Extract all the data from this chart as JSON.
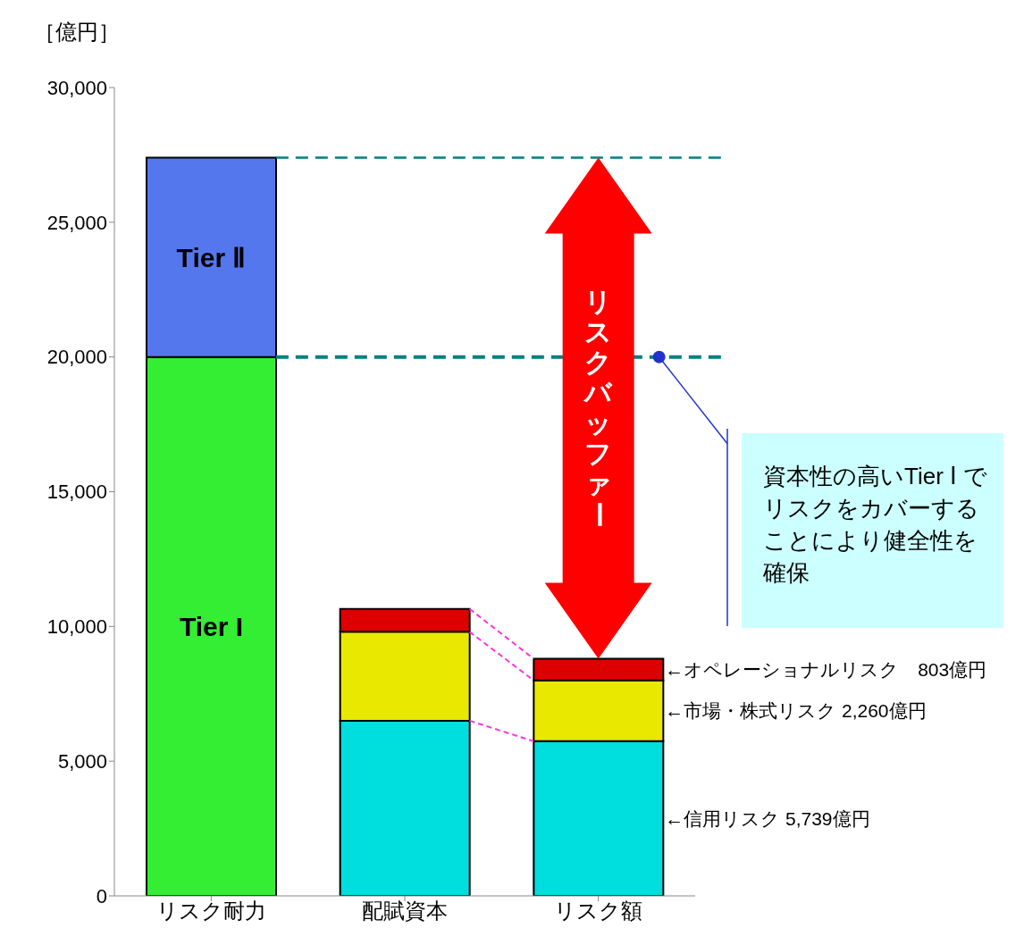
{
  "chart_data": {
    "type": "bar",
    "stacked": true,
    "ylabel": "［億円］",
    "categories": [
      "リスク耐力",
      "配賦資本",
      "リスク額"
    ],
    "series": [
      {
        "name": "Tier I",
        "color": "#33ee33",
        "values": [
          20000,
          null,
          null
        ]
      },
      {
        "name": "Tier Ⅱ",
        "color": "#5577ee",
        "values": [
          7400,
          null,
          null
        ]
      },
      {
        "color": "#00dddd",
        "values": [
          null,
          6500,
          5739
        ]
      },
      {
        "color": "#e8e800",
        "values": [
          null,
          3300,
          2260
        ]
      },
      {
        "color": "#dd0000",
        "values": [
          null,
          850,
          803
        ]
      }
    ],
    "ylim": [
      0,
      30000
    ],
    "yticks": [
      {
        "value": 0,
        "label": "0"
      },
      {
        "value": 5000,
        "label": "5,000"
      },
      {
        "value": 10000,
        "label": "10,000"
      },
      {
        "value": 15000,
        "label": "15,000"
      },
      {
        "value": 20000,
        "label": "20,000"
      },
      {
        "value": 25000,
        "label": "25,000"
      },
      {
        "value": 30000,
        "label": "30,000"
      }
    ],
    "ref_lines": [
      {
        "axis": "y",
        "value": 27400,
        "color": "#008080",
        "line_style": "dashed"
      },
      {
        "axis": "y",
        "value": 20000,
        "color": "#008080",
        "line_style": "dashed"
      }
    ],
    "annotations": [
      "リスクバッファー",
      "資本性の高いTier Ⅰ でリスクをカバーすることにより健全性を確保",
      "←オペレーショナルリスク　803億円",
      "←市場・株式リスク 2,260億円",
      "←信用リスク  5,739億円"
    ],
    "legend": false
  }
}
